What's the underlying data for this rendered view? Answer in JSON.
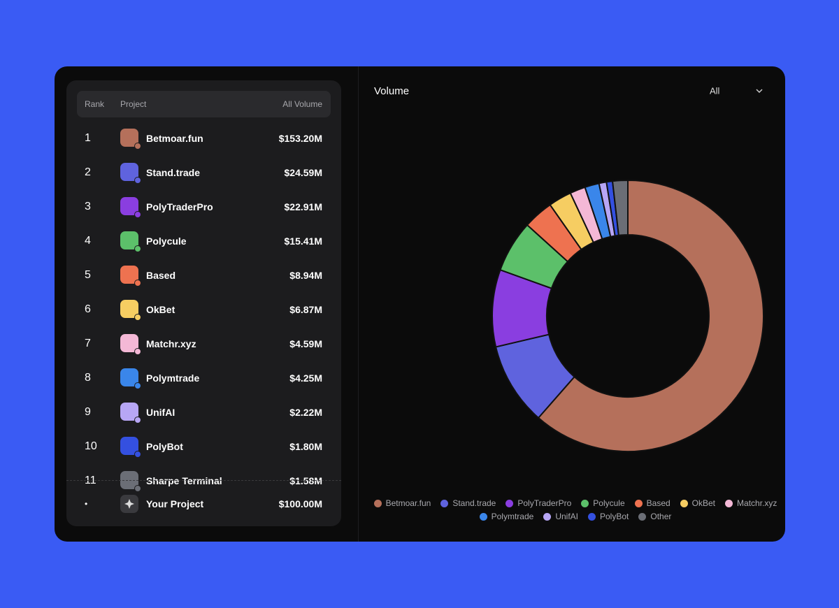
{
  "table": {
    "header": [
      "Rank",
      "Project",
      "All Volume"
    ],
    "rows": [
      [
        "1",
        "Betmoar.fun",
        "$153.20M"
      ],
      [
        "2",
        "Stand.trade",
        "$24.59M"
      ],
      [
        "3",
        "PolyTraderPro",
        "$22.91M"
      ],
      [
        "4",
        "Polycule",
        "$15.41M"
      ],
      [
        "5",
        "Based",
        "$8.94M"
      ],
      [
        "6",
        "OkBet",
        "$6.87M"
      ],
      [
        "7",
        "Matchr.xyz",
        "$4.59M"
      ],
      [
        "8",
        "Polymtrade",
        "$4.25M"
      ],
      [
        "9",
        "UnifAI",
        "$2.22M"
      ],
      [
        "10",
        "PolyBot",
        "$1.80M"
      ],
      [
        "11",
        "Sharpe Terminal",
        "$1.58M"
      ]
    ],
    "footer": [
      "•",
      "Your Project",
      "$100.00M"
    ]
  },
  "chart_data": {
    "type": "pie",
    "title": "Volume",
    "filter": "All",
    "donut": true,
    "series": [
      {
        "name": "Betmoar.fun",
        "color": "#b5705b",
        "values": [
          153.2
        ]
      },
      {
        "name": "Stand.trade",
        "color": "#5f63de",
        "values": [
          24.59
        ]
      },
      {
        "name": "PolyTraderPro",
        "color": "#8a3ee0",
        "values": [
          22.91
        ]
      },
      {
        "name": "Polycule",
        "color": "#5cc06a",
        "values": [
          15.41
        ]
      },
      {
        "name": "Based",
        "color": "#ee7250",
        "values": [
          8.94
        ]
      },
      {
        "name": "OkBet",
        "color": "#f6cd62",
        "values": [
          6.87
        ]
      },
      {
        "name": "Matchr.xyz",
        "color": "#f4b8d6",
        "values": [
          4.59
        ]
      },
      {
        "name": "Polymtrade",
        "color": "#3a86ea",
        "values": [
          4.25
        ]
      },
      {
        "name": "UnifAI",
        "color": "#b7a6f5",
        "values": [
          2.22
        ]
      },
      {
        "name": "PolyBot",
        "color": "#3450e0",
        "values": [
          1.8
        ]
      },
      {
        "name": "Other",
        "color": "#6b6e76",
        "values": [
          4.5
        ]
      }
    ]
  }
}
